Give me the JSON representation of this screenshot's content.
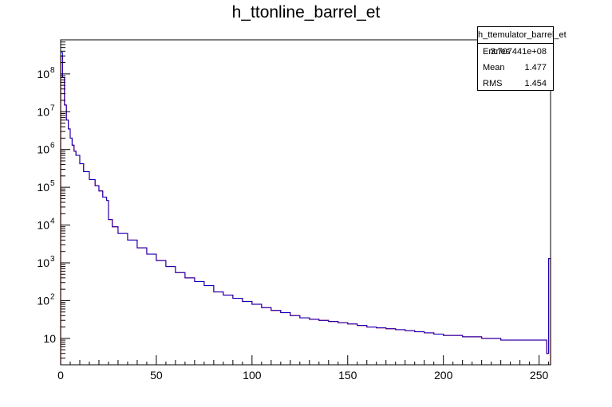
{
  "chart_data": {
    "type": "histogram",
    "title": "h_ttonline_barrel_et",
    "xlabel": "",
    "ylabel": "",
    "xlim": [
      0,
      256
    ],
    "ylim": [
      2,
      800000000
    ],
    "y_scale": "log",
    "x_ticks": [
      "0",
      "50",
      "100",
      "150",
      "200",
      "250"
    ],
    "y_ticks": [
      {
        "base": "10",
        "exp": "8"
      },
      {
        "base": "10",
        "exp": "7"
      },
      {
        "base": "10",
        "exp": "6"
      },
      {
        "base": "10",
        "exp": "5"
      },
      {
        "base": "10",
        "exp": "4"
      },
      {
        "base": "10",
        "exp": "3"
      },
      {
        "base": "10",
        "exp": "2"
      },
      {
        "base": "10",
        "exp": ""
      }
    ],
    "series": [
      {
        "color": "#ff0000",
        "bins_x": [
          0,
          1,
          2,
          3,
          4,
          5,
          6,
          7,
          8,
          10,
          12,
          15,
          18,
          20,
          22,
          24,
          25,
          27,
          30,
          35,
          40,
          45,
          50,
          55,
          60,
          65,
          70,
          75,
          80,
          85,
          90,
          95,
          100,
          105,
          110,
          115,
          120,
          125,
          130,
          135,
          140,
          145,
          150,
          155,
          160,
          165,
          170,
          175,
          180,
          185,
          190,
          195,
          200,
          205,
          210,
          215,
          220,
          225,
          230,
          235,
          240,
          245,
          250,
          254,
          255
        ],
        "bins_y": [
          300000000,
          80000000,
          15000000,
          6000000,
          3500000,
          2000000,
          1300000,
          900000,
          700000,
          420000,
          260000,
          160000,
          110000,
          80000,
          55000,
          45000,
          14000,
          9000,
          6000,
          4000,
          2500,
          1700,
          1150,
          800,
          550,
          400,
          320,
          250,
          170,
          140,
          115,
          95,
          80,
          65,
          55,
          48,
          40,
          35,
          32,
          30,
          28,
          26,
          24,
          22,
          20,
          19,
          18,
          17,
          16,
          15,
          14,
          13,
          12,
          12,
          11,
          11,
          10,
          10,
          9,
          9,
          9,
          9,
          9,
          4,
          1300
        ]
      },
      {
        "color": "#0000cc",
        "bins_x": [
          0,
          1,
          2,
          3,
          4,
          5,
          6,
          7,
          8,
          10,
          12,
          15,
          18,
          20,
          22,
          24,
          25,
          27,
          30,
          35,
          40,
          45,
          50,
          55,
          60,
          65,
          70,
          75,
          80,
          85,
          90,
          95,
          100,
          105,
          110,
          115,
          120,
          125,
          130,
          135,
          140,
          145,
          150,
          155,
          160,
          165,
          170,
          175,
          180,
          185,
          190,
          195,
          200,
          205,
          210,
          215,
          220,
          225,
          230,
          235,
          240,
          245,
          250,
          254,
          255
        ],
        "bins_y": [
          370000000,
          80000000,
          15000000,
          6000000,
          3500000,
          2000000,
          1300000,
          900000,
          700000,
          420000,
          260000,
          160000,
          110000,
          80000,
          55000,
          45000,
          14000,
          9000,
          6000,
          4000,
          2500,
          1700,
          1150,
          800,
          550,
          400,
          320,
          250,
          170,
          140,
          115,
          95,
          80,
          65,
          55,
          48,
          40,
          35,
          32,
          30,
          28,
          26,
          24,
          22,
          20,
          19,
          18,
          17,
          16,
          15,
          14,
          13,
          12,
          12,
          11,
          11,
          10,
          10,
          9,
          9,
          9,
          9,
          9,
          4,
          1300
        ]
      }
    ],
    "stats": {
      "name": "h_ttemulator_barrel_et",
      "rows": [
        {
          "label": "Entries",
          "value": "3.707441e+08"
        },
        {
          "label": "Mean",
          "value": "1.477"
        },
        {
          "label": "RMS",
          "value": "1.454"
        }
      ]
    }
  }
}
